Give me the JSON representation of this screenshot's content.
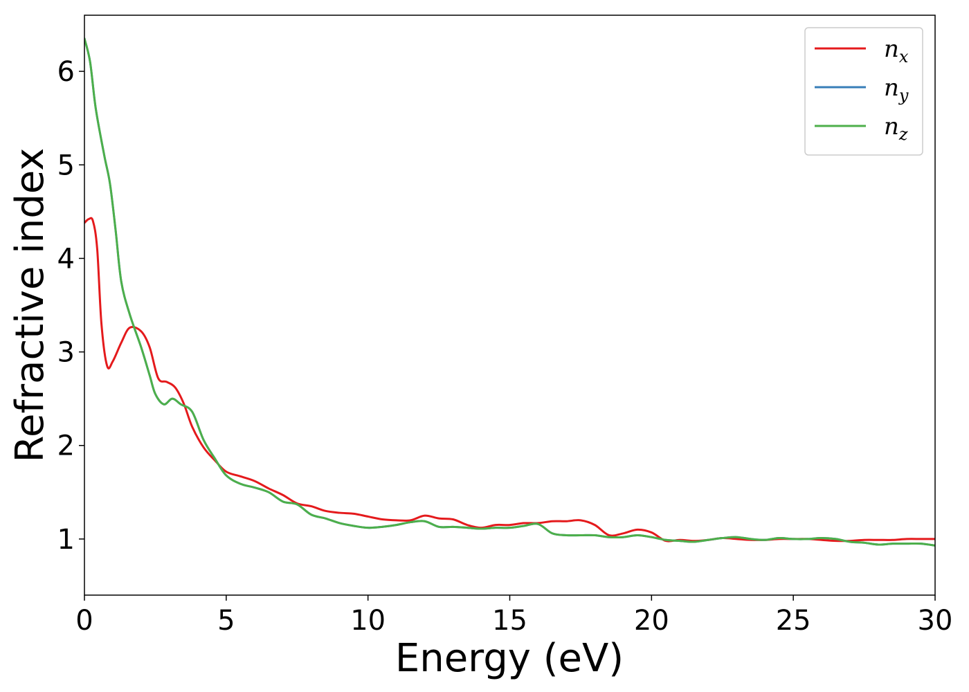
{
  "chart_data": {
    "type": "line",
    "title": "",
    "xlabel": "Energy (eV)",
    "ylabel": "Refractive index",
    "xlim": [
      0,
      30
    ],
    "ylim": [
      0.4,
      6.6
    ],
    "xticks": [
      0,
      5,
      10,
      15,
      20,
      25,
      30
    ],
    "yticks": [
      1,
      2,
      3,
      4,
      5,
      6
    ],
    "grid": false,
    "legend_position": "top-right",
    "series": [
      {
        "name": "n_x",
        "label_base": "n",
        "label_sub": "x",
        "color": "#e41a1c",
        "points": [
          [
            0,
            4.38
          ],
          [
            0.15,
            4.42
          ],
          [
            0.3,
            4.4
          ],
          [
            0.45,
            4.1
          ],
          [
            0.6,
            3.3
          ],
          [
            0.8,
            2.85
          ],
          [
            1.0,
            2.9
          ],
          [
            1.3,
            3.1
          ],
          [
            1.6,
            3.26
          ],
          [
            2.0,
            3.22
          ],
          [
            2.3,
            3.05
          ],
          [
            2.6,
            2.72
          ],
          [
            2.9,
            2.68
          ],
          [
            3.2,
            2.62
          ],
          [
            3.5,
            2.45
          ],
          [
            3.8,
            2.2
          ],
          [
            4.2,
            1.98
          ],
          [
            4.6,
            1.84
          ],
          [
            5.0,
            1.72
          ],
          [
            5.5,
            1.67
          ],
          [
            6.0,
            1.62
          ],
          [
            6.5,
            1.54
          ],
          [
            7.0,
            1.47
          ],
          [
            7.5,
            1.38
          ],
          [
            8.0,
            1.35
          ],
          [
            8.5,
            1.3
          ],
          [
            9.0,
            1.28
          ],
          [
            9.5,
            1.27
          ],
          [
            10.0,
            1.24
          ],
          [
            10.5,
            1.21
          ],
          [
            11.0,
            1.2
          ],
          [
            11.5,
            1.2
          ],
          [
            12.0,
            1.25
          ],
          [
            12.5,
            1.22
          ],
          [
            13.0,
            1.21
          ],
          [
            13.5,
            1.15
          ],
          [
            14.0,
            1.12
          ],
          [
            14.5,
            1.15
          ],
          [
            15.0,
            1.15
          ],
          [
            15.5,
            1.17
          ],
          [
            16.0,
            1.17
          ],
          [
            16.5,
            1.19
          ],
          [
            17.0,
            1.19
          ],
          [
            17.5,
            1.2
          ],
          [
            18.0,
            1.15
          ],
          [
            18.5,
            1.04
          ],
          [
            19.0,
            1.06
          ],
          [
            19.5,
            1.1
          ],
          [
            20.0,
            1.07
          ],
          [
            20.5,
            0.98
          ],
          [
            21.0,
            0.99
          ],
          [
            21.5,
            0.98
          ],
          [
            22.0,
            0.99
          ],
          [
            22.5,
            1.01
          ],
          [
            23.0,
            1.0
          ],
          [
            23.5,
            0.99
          ],
          [
            24.0,
            0.99
          ],
          [
            24.5,
            1.0
          ],
          [
            25.0,
            1.0
          ],
          [
            25.5,
            1.0
          ],
          [
            26.0,
            0.99
          ],
          [
            26.5,
            0.98
          ],
          [
            27.0,
            0.98
          ],
          [
            27.5,
            0.99
          ],
          [
            28.0,
            0.99
          ],
          [
            28.5,
            0.99
          ],
          [
            29.0,
            1.0
          ],
          [
            29.5,
            1.0
          ],
          [
            30.0,
            1.0
          ]
        ]
      },
      {
        "name": "n_y",
        "label_base": "n",
        "label_sub": "y",
        "color": "#377eb8",
        "points": [
          [
            0,
            6.35
          ],
          [
            0.2,
            6.1
          ],
          [
            0.4,
            5.6
          ],
          [
            0.7,
            5.1
          ],
          [
            0.9,
            4.8
          ],
          [
            1.1,
            4.3
          ],
          [
            1.3,
            3.75
          ],
          [
            1.6,
            3.4
          ],
          [
            2.0,
            3.05
          ],
          [
            2.3,
            2.75
          ],
          [
            2.5,
            2.55
          ],
          [
            2.8,
            2.44
          ],
          [
            3.1,
            2.5
          ],
          [
            3.4,
            2.44
          ],
          [
            3.8,
            2.36
          ],
          [
            4.2,
            2.06
          ],
          [
            4.6,
            1.86
          ],
          [
            5.0,
            1.68
          ],
          [
            5.5,
            1.59
          ],
          [
            6.0,
            1.55
          ],
          [
            6.5,
            1.5
          ],
          [
            7.0,
            1.4
          ],
          [
            7.5,
            1.37
          ],
          [
            8.0,
            1.26
          ],
          [
            8.5,
            1.22
          ],
          [
            9.0,
            1.17
          ],
          [
            9.5,
            1.14
          ],
          [
            10.0,
            1.12
          ],
          [
            10.5,
            1.13
          ],
          [
            11.0,
            1.15
          ],
          [
            11.5,
            1.18
          ],
          [
            12.0,
            1.19
          ],
          [
            12.5,
            1.13
          ],
          [
            13.0,
            1.13
          ],
          [
            13.5,
            1.12
          ],
          [
            14.0,
            1.11
          ],
          [
            14.5,
            1.12
          ],
          [
            15.0,
            1.12
          ],
          [
            15.5,
            1.14
          ],
          [
            16.0,
            1.16
          ],
          [
            16.5,
            1.06
          ],
          [
            17.0,
            1.04
          ],
          [
            17.5,
            1.04
          ],
          [
            18.0,
            1.04
          ],
          [
            18.5,
            1.02
          ],
          [
            19.0,
            1.02
          ],
          [
            19.5,
            1.04
          ],
          [
            20.0,
            1.02
          ],
          [
            20.5,
            0.99
          ],
          [
            21.0,
            0.98
          ],
          [
            21.5,
            0.97
          ],
          [
            22.0,
            0.99
          ],
          [
            22.5,
            1.01
          ],
          [
            23.0,
            1.02
          ],
          [
            23.5,
            1.0
          ],
          [
            24.0,
            0.99
          ],
          [
            24.5,
            1.01
          ],
          [
            25.0,
            1.0
          ],
          [
            25.5,
            1.0
          ],
          [
            26.0,
            1.01
          ],
          [
            26.5,
            1.0
          ],
          [
            27.0,
            0.97
          ],
          [
            27.5,
            0.96
          ],
          [
            28.0,
            0.94
          ],
          [
            28.5,
            0.95
          ],
          [
            29.0,
            0.95
          ],
          [
            29.5,
            0.95
          ],
          [
            30.0,
            0.93
          ]
        ]
      },
      {
        "name": "n_z",
        "label_base": "n",
        "label_sub": "z",
        "color": "#4daf4a",
        "points": [
          [
            0,
            6.35
          ],
          [
            0.2,
            6.1
          ],
          [
            0.4,
            5.6
          ],
          [
            0.7,
            5.1
          ],
          [
            0.9,
            4.8
          ],
          [
            1.1,
            4.3
          ],
          [
            1.3,
            3.75
          ],
          [
            1.6,
            3.4
          ],
          [
            2.0,
            3.05
          ],
          [
            2.3,
            2.75
          ],
          [
            2.5,
            2.55
          ],
          [
            2.8,
            2.44
          ],
          [
            3.1,
            2.5
          ],
          [
            3.4,
            2.44
          ],
          [
            3.8,
            2.36
          ],
          [
            4.2,
            2.06
          ],
          [
            4.6,
            1.86
          ],
          [
            5.0,
            1.68
          ],
          [
            5.5,
            1.59
          ],
          [
            6.0,
            1.55
          ],
          [
            6.5,
            1.5
          ],
          [
            7.0,
            1.4
          ],
          [
            7.5,
            1.37
          ],
          [
            8.0,
            1.26
          ],
          [
            8.5,
            1.22
          ],
          [
            9.0,
            1.17
          ],
          [
            9.5,
            1.14
          ],
          [
            10.0,
            1.12
          ],
          [
            10.5,
            1.13
          ],
          [
            11.0,
            1.15
          ],
          [
            11.5,
            1.18
          ],
          [
            12.0,
            1.19
          ],
          [
            12.5,
            1.13
          ],
          [
            13.0,
            1.13
          ],
          [
            13.5,
            1.12
          ],
          [
            14.0,
            1.11
          ],
          [
            14.5,
            1.12
          ],
          [
            15.0,
            1.12
          ],
          [
            15.5,
            1.14
          ],
          [
            16.0,
            1.16
          ],
          [
            16.5,
            1.06
          ],
          [
            17.0,
            1.04
          ],
          [
            17.5,
            1.04
          ],
          [
            18.0,
            1.04
          ],
          [
            18.5,
            1.02
          ],
          [
            19.0,
            1.02
          ],
          [
            19.5,
            1.04
          ],
          [
            20.0,
            1.02
          ],
          [
            20.5,
            0.99
          ],
          [
            21.0,
            0.98
          ],
          [
            21.5,
            0.97
          ],
          [
            22.0,
            0.99
          ],
          [
            22.5,
            1.01
          ],
          [
            23.0,
            1.02
          ],
          [
            23.5,
            1.0
          ],
          [
            24.0,
            0.99
          ],
          [
            24.5,
            1.01
          ],
          [
            25.0,
            1.0
          ],
          [
            25.5,
            1.0
          ],
          [
            26.0,
            1.01
          ],
          [
            26.5,
            1.0
          ],
          [
            27.0,
            0.97
          ],
          [
            27.5,
            0.96
          ],
          [
            28.0,
            0.94
          ],
          [
            28.5,
            0.95
          ],
          [
            29.0,
            0.95
          ],
          [
            29.5,
            0.95
          ],
          [
            30.0,
            0.93
          ]
        ]
      }
    ]
  }
}
